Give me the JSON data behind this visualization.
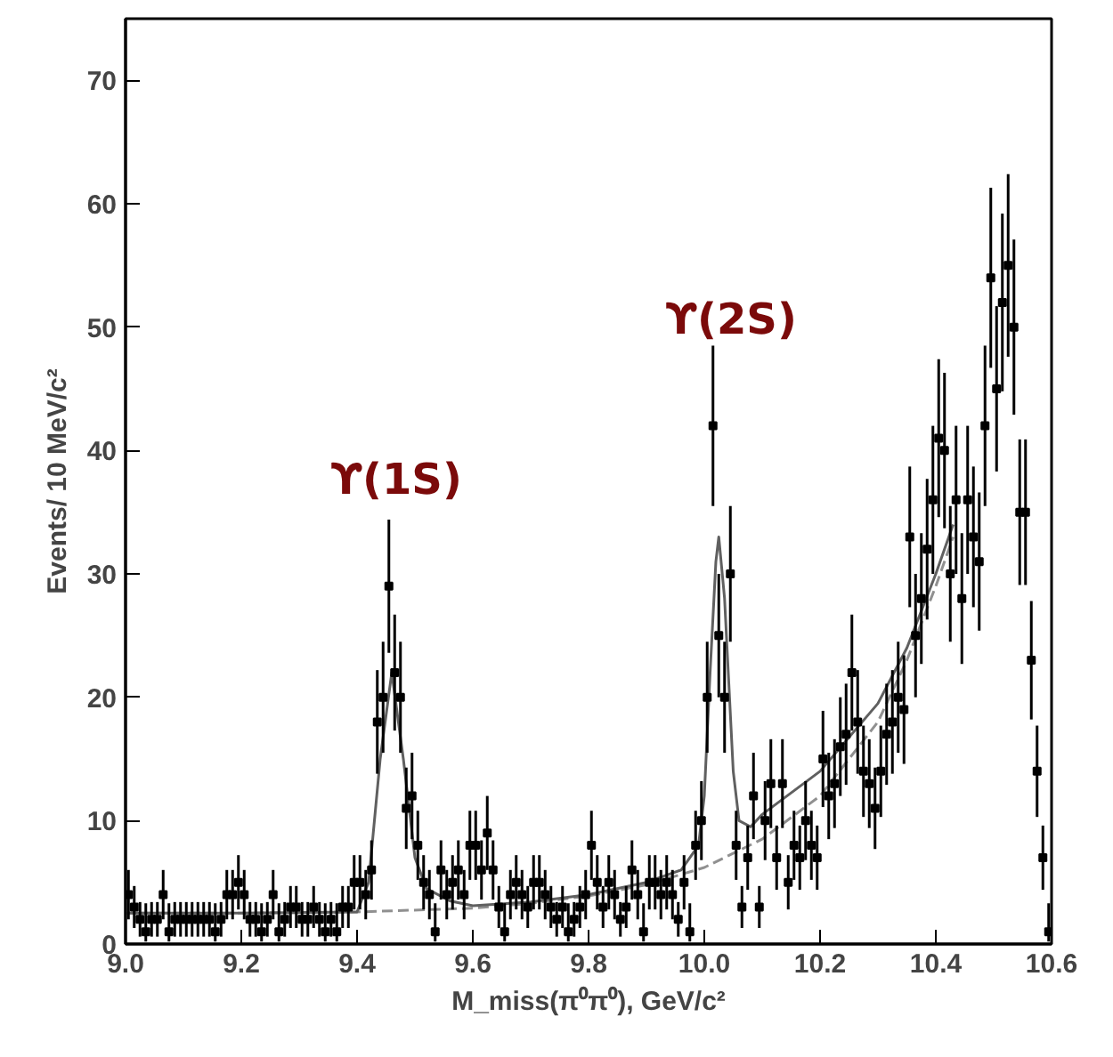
{
  "chart_data": {
    "type": "scatter",
    "xlabel": "M_miss(π⁰π⁰), GeV/c²",
    "ylabel": "Events/ 10 MeV/c²",
    "xlim": [
      9.0,
      10.6
    ],
    "xticks": [
      {
        "value": 9.0,
        "label": "9.0"
      },
      9.2,
      9.4,
      9.6,
      9.8,
      {
        "value": 10.0,
        "label": "10.0"
      },
      10.2,
      10.4,
      10.6
    ],
    "ylim": [
      0,
      75
    ],
    "yticks": [
      0,
      10,
      20,
      30,
      40,
      50,
      60,
      70
    ],
    "grid": false,
    "annotations": [
      "ϒ(1S)",
      "ϒ(2S)"
    ],
    "series": [
      {
        "type": "line",
        "color": "#909090",
        "line_style": "dashed",
        "marker": "none",
        "x": [
          9.0,
          9.2,
          9.4,
          9.6,
          9.7,
          9.8,
          9.9,
          10.0,
          10.1,
          10.2,
          10.3,
          10.35,
          10.4,
          10.43
        ],
        "values": [
          2.5,
          2.5,
          2.6,
          2.9,
          3.3,
          3.9,
          4.8,
          6.2,
          8.5,
          12,
          18,
          23,
          29,
          33
        ]
      },
      {
        "type": "line",
        "color": "#606060",
        "line_style": "solid",
        "marker": "none",
        "x": [
          9.0,
          9.2,
          9.4,
          9.42,
          9.44,
          9.46,
          9.48,
          9.5,
          9.52,
          9.56,
          9.6,
          9.7,
          9.8,
          9.9,
          9.96,
          9.99,
          10.0,
          10.01,
          10.02,
          10.025,
          10.035,
          10.05,
          10.06,
          10.08,
          10.1,
          10.2,
          10.3,
          10.35,
          10.4,
          10.43
        ],
        "values": [
          2.5,
          2.5,
          2.6,
          5,
          15,
          22,
          15,
          7,
          4.5,
          3.5,
          3.1,
          3.4,
          4,
          5,
          6,
          8,
          12,
          22,
          31,
          33,
          28,
          14,
          10,
          9.5,
          10.5,
          14,
          19.5,
          24,
          30,
          34
        ]
      },
      {
        "color": "#000000",
        "marker": "square",
        "x": [
          9.005,
          9.015,
          9.025,
          9.035,
          9.045,
          9.055,
          9.065,
          9.075,
          9.085,
          9.095,
          9.105,
          9.115,
          9.125,
          9.135,
          9.145,
          9.155,
          9.165,
          9.175,
          9.185,
          9.195,
          9.205,
          9.215,
          9.225,
          9.235,
          9.245,
          9.255,
          9.265,
          9.275,
          9.285,
          9.295,
          9.305,
          9.315,
          9.325,
          9.335,
          9.345,
          9.355,
          9.365,
          9.375,
          9.385,
          9.395,
          9.405,
          9.415,
          9.425,
          9.435,
          9.445,
          9.455,
          9.465,
          9.475,
          9.485,
          9.495,
          9.505,
          9.515,
          9.525,
          9.535,
          9.545,
          9.555,
          9.565,
          9.575,
          9.585,
          9.595,
          9.605,
          9.615,
          9.625,
          9.635,
          9.645,
          9.655,
          9.665,
          9.675,
          9.685,
          9.695,
          9.705,
          9.715,
          9.725,
          9.735,
          9.745,
          9.755,
          9.765,
          9.775,
          9.785,
          9.795,
          9.805,
          9.815,
          9.825,
          9.835,
          9.845,
          9.855,
          9.865,
          9.875,
          9.885,
          9.895,
          9.905,
          9.915,
          9.925,
          9.935,
          9.945,
          9.955,
          9.965,
          9.975,
          9.985,
          9.995,
          10.005,
          10.015,
          10.025,
          10.035,
          10.045,
          10.055,
          10.065,
          10.075,
          10.085,
          10.095,
          10.105,
          10.115,
          10.125,
          10.135,
          10.145,
          10.155,
          10.165,
          10.175,
          10.185,
          10.195,
          10.205,
          10.215,
          10.225,
          10.235,
          10.245,
          10.255,
          10.265,
          10.275,
          10.285,
          10.295,
          10.305,
          10.315,
          10.325,
          10.335,
          10.345,
          10.355,
          10.365,
          10.375,
          10.385,
          10.395,
          10.405,
          10.415,
          10.425,
          10.435,
          10.445,
          10.455,
          10.465,
          10.475,
          10.485,
          10.495,
          10.505,
          10.515,
          10.525,
          10.535,
          10.545,
          10.555,
          10.565,
          10.575,
          10.585,
          10.595
        ],
        "values": [
          4,
          3,
          2,
          1,
          2,
          2,
          4,
          1,
          2,
          2,
          2,
          2,
          2,
          2,
          2,
          1,
          2,
          4,
          4,
          5,
          4,
          2,
          2,
          1,
          2,
          4,
          1,
          2,
          3,
          3,
          2,
          2,
          3,
          2,
          1,
          2,
          1,
          3,
          3,
          5,
          5,
          4,
          6,
          18,
          20,
          29,
          22,
          20,
          11,
          12,
          8,
          5,
          4,
          1,
          6,
          4,
          5,
          6,
          4,
          8,
          8,
          6,
          9,
          6,
          3,
          1,
          4,
          5,
          4,
          3,
          5,
          5,
          4,
          3,
          2,
          3,
          1,
          2,
          3,
          4,
          8,
          5,
          3,
          5,
          4,
          2,
          3,
          6,
          4,
          1,
          5,
          5,
          4,
          5,
          4,
          2,
          5,
          1,
          8,
          10,
          20,
          42,
          25,
          20,
          30,
          8,
          3,
          7,
          12,
          3,
          10,
          13,
          7,
          13,
          5,
          8,
          7,
          10,
          8,
          7,
          15,
          12,
          13,
          16,
          17,
          22,
          18,
          14,
          13,
          11,
          14,
          17,
          18,
          20,
          19,
          33,
          25,
          28,
          32,
          36,
          41,
          40,
          30,
          36,
          28,
          36,
          33,
          31,
          42,
          54,
          45,
          52,
          55,
          50,
          35,
          35,
          23,
          14,
          7,
          1
        ],
        "errors": [
          2,
          1.7,
          1.4,
          [
            0.2,
            3.3
          ],
          1.4,
          1.4,
          2,
          [
            0.2,
            3.3
          ],
          1.4,
          1.4,
          1.4,
          1.4,
          1.4,
          1.4,
          1.4,
          [
            0.2,
            3.3
          ],
          1.4,
          2,
          2,
          2.2,
          2,
          1.4,
          1.4,
          [
            0.2,
            3.3
          ],
          1.4,
          2,
          [
            0.2,
            3.3
          ],
          1.4,
          1.7,
          1.7,
          1.4,
          1.4,
          1.7,
          1.4,
          [
            0.2,
            3.3
          ],
          1.4,
          [
            0.2,
            3.3
          ],
          1.7,
          1.7,
          2.2,
          2.2,
          2,
          2.4,
          4.2,
          4.5,
          5.4,
          4.7,
          4.5,
          3.3,
          3.5,
          2.8,
          2.2,
          2,
          [
            0.2,
            3.3
          ],
          2.4,
          2,
          2.2,
          2.4,
          2,
          2.8,
          2.8,
          2.4,
          3,
          2.4,
          1.7,
          [
            0.2,
            3.3
          ],
          2,
          2.2,
          2,
          1.7,
          2.2,
          2.2,
          2,
          1.7,
          1.4,
          1.7,
          [
            0.2,
            3.3
          ],
          1.4,
          1.7,
          2,
          2.8,
          2.2,
          1.7,
          2.2,
          2,
          1.4,
          1.7,
          2.4,
          2,
          [
            0.2,
            3.3
          ],
          2.2,
          2.2,
          2,
          2.2,
          2,
          1.4,
          2.2,
          [
            0.2,
            3.3
          ],
          2.8,
          3.2,
          4.5,
          6.5,
          5,
          4.5,
          5.5,
          2.8,
          1.7,
          2.6,
          3.5,
          1.7,
          3.2,
          3.6,
          2.6,
          3.6,
          2.2,
          2.8,
          2.6,
          3.2,
          2.8,
          2.6,
          3.9,
          3.5,
          3.6,
          4,
          4.1,
          4.7,
          4.2,
          3.7,
          3.6,
          3.3,
          3.7,
          4.1,
          4.2,
          4.5,
          4.4,
          5.7,
          5,
          5.3,
          5.7,
          6,
          6.4,
          6.3,
          5.5,
          6,
          5.3,
          6,
          5.7,
          5.6,
          6.5,
          7.3,
          6.7,
          7.2,
          7.4,
          7.1,
          5.9,
          5.9,
          4.8,
          3.7,
          2.6,
          [
            0.2,
            3.3
          ]
        ]
      }
    ]
  }
}
